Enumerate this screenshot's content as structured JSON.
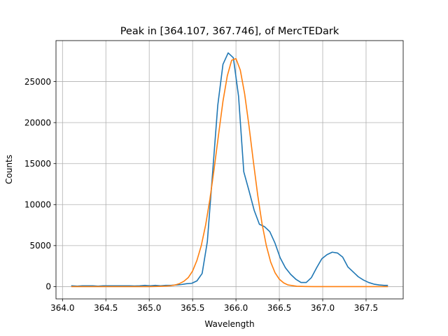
{
  "chart_data": {
    "type": "line",
    "title": "Peak in [364.107, 367.746], of MercTEDark",
    "xlabel": "Wavelength",
    "ylabel": "Counts",
    "xlim": [
      363.925,
      367.928
    ],
    "ylim": [
      -1500,
      30000
    ],
    "x_ticks": [
      364.0,
      364.5,
      365.0,
      365.5,
      366.0,
      366.5,
      367.0,
      367.5
    ],
    "x_tick_labels": [
      "364.0",
      "364.5",
      "365.0",
      "365.5",
      "366.0",
      "366.5",
      "367.0",
      "367.5"
    ],
    "y_ticks": [
      0,
      5000,
      10000,
      15000,
      20000,
      25000
    ],
    "y_tick_labels": [
      "0",
      "5000",
      "10000",
      "15000",
      "20000",
      "25000"
    ],
    "grid": true,
    "series": [
      {
        "color": "#1f77b4",
        "x": [
          364.107,
          364.17,
          364.23,
          364.29,
          364.35,
          364.41,
          364.47,
          364.53,
          364.59,
          364.65,
          364.71,
          364.77,
          364.83,
          364.89,
          364.95,
          365.01,
          365.07,
          365.13,
          365.19,
          365.25,
          365.31,
          365.37,
          365.43,
          365.49,
          365.55,
          365.61,
          365.67,
          365.73,
          365.79,
          365.85,
          365.91,
          365.97,
          366.03,
          366.09,
          366.15,
          366.21,
          366.27,
          366.33,
          366.39,
          366.45,
          366.51,
          366.57,
          366.63,
          366.69,
          366.75,
          366.81,
          366.87,
          366.93,
          366.99,
          367.05,
          367.11,
          367.17,
          367.23,
          367.29,
          367.35,
          367.41,
          367.47,
          367.53,
          367.59,
          367.65,
          367.71,
          367.746
        ],
        "y": [
          100,
          50,
          100,
          100,
          100,
          50,
          100,
          100,
          100,
          100,
          100,
          100,
          80,
          100,
          150,
          100,
          150,
          100,
          150,
          150,
          200,
          250,
          350,
          400,
          700,
          1600,
          5500,
          13800,
          22100,
          27100,
          28500,
          27900,
          23200,
          14000,
          11700,
          9300,
          7600,
          7300,
          6700,
          5300,
          3500,
          2300,
          1500,
          900,
          500,
          500,
          1100,
          2300,
          3400,
          3900,
          4200,
          4100,
          3600,
          2400,
          1800,
          1200,
          800,
          500,
          300,
          200,
          150,
          150
        ]
      },
      {
        "color": "#ff7f0e",
        "x": [
          364.107,
          364.2,
          364.3,
          364.4,
          364.5,
          364.6,
          364.7,
          364.8,
          364.9,
          365.0,
          365.1,
          365.2,
          365.25,
          365.3,
          365.35,
          365.4,
          365.45,
          365.5,
          365.55,
          365.6,
          365.65,
          365.7,
          365.75,
          365.8,
          365.85,
          365.9,
          365.95,
          366.0,
          366.05,
          366.1,
          366.15,
          366.2,
          366.25,
          366.3,
          366.35,
          366.4,
          366.45,
          366.5,
          366.55,
          366.6,
          366.7,
          366.8,
          366.9,
          367.0,
          367.2,
          367.4,
          367.6,
          367.746
        ],
        "y": [
          0,
          0,
          0,
          0,
          0,
          0,
          0,
          0,
          0,
          0,
          20,
          60,
          110,
          200,
          370,
          650,
          1100,
          1900,
          3200,
          5000,
          7500,
          10700,
          14500,
          18600,
          22600,
          25700,
          27600,
          27800,
          26400,
          23500,
          19600,
          15300,
          11200,
          7700,
          5000,
          3000,
          1700,
          900,
          450,
          200,
          40,
          10,
          0,
          0,
          0,
          0,
          0,
          0
        ]
      }
    ]
  }
}
